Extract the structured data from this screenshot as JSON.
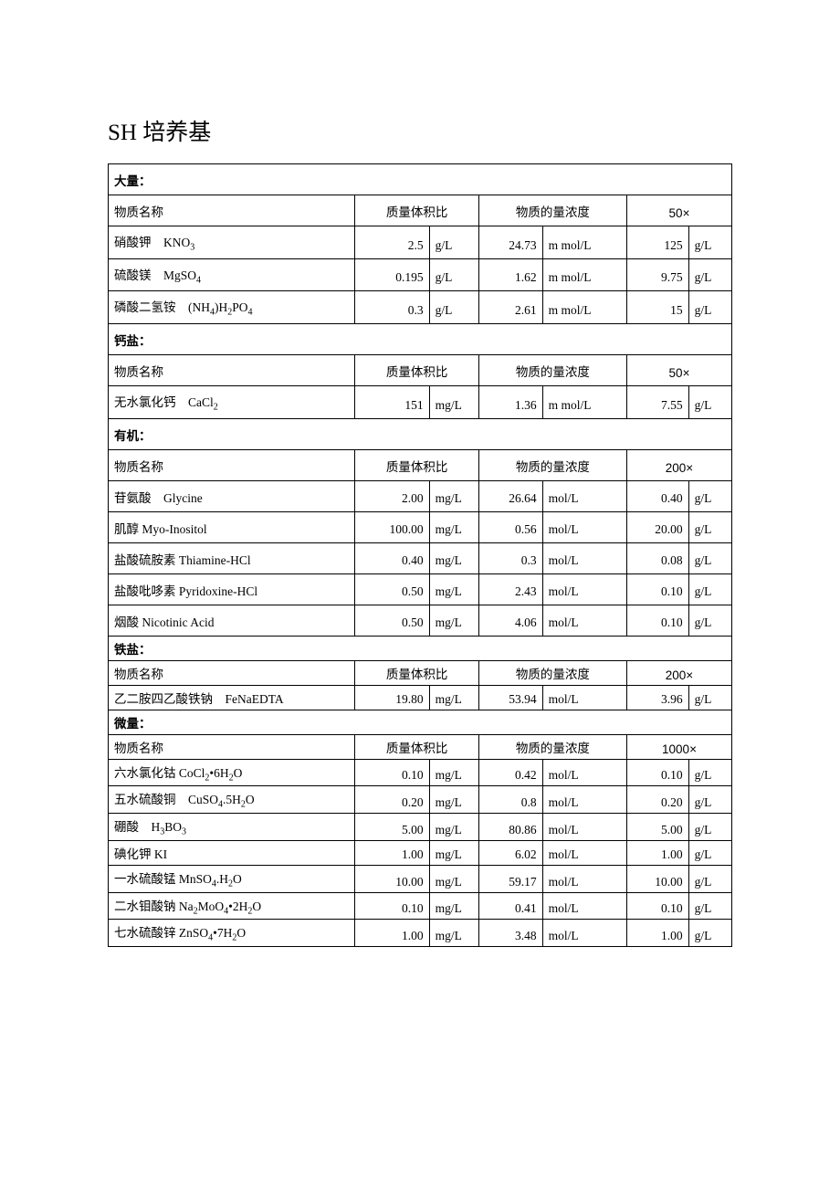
{
  "title": "SH 培养基",
  "headers": {
    "name": "物质名称",
    "mass_vol": "质量体积比",
    "molar": "物质的量浓度"
  },
  "sections": [
    {
      "label": "大量：",
      "multiplier": "50×",
      "compact": false,
      "rows": [
        {
          "name": "硝酸钾　KNO₃",
          "v1": "2.5",
          "u1": "g/L",
          "v2": "24.73",
          "u2": "m mol/L",
          "v3": "125",
          "u3": "g/L"
        },
        {
          "name": "硫酸镁　MgSO₄",
          "v1": "0.195",
          "u1": "g/L",
          "v2": "1.62",
          "u2": "m mol/L",
          "v3": "9.75",
          "u3": "g/L"
        },
        {
          "name": "磷酸二氢铵　(NH₄)H₂PO₄",
          "v1": "0.3",
          "u1": "g/L",
          "v2": "2.61",
          "u2": "m mol/L",
          "v3": "15",
          "u3": "g/L"
        }
      ]
    },
    {
      "label": "钙盐：",
      "multiplier": "50×",
      "compact": false,
      "rows": [
        {
          "name": "无水氯化钙　CaCl₂",
          "v1": "151",
          "u1": "mg/L",
          "v2": "1.36",
          "u2": "m mol/L",
          "v3": "7.55",
          "u3": "g/L"
        }
      ]
    },
    {
      "label": "有机：",
      "multiplier": "200×",
      "compact": false,
      "rows": [
        {
          "name": "苷氨酸　Glycine",
          "v1": "2.00",
          "u1": "mg/L",
          "v2": "26.64",
          "u2": "mol/L",
          "v3": "0.40",
          "u3": "g/L"
        },
        {
          "name": "肌醇 Myo-Inositol",
          "v1": "100.00",
          "u1": "mg/L",
          "v2": "0.56",
          "u2": "mol/L",
          "v3": "20.00",
          "u3": "g/L"
        },
        {
          "name": "盐酸硫胺素 Thiamine-HCl",
          "v1": "0.40",
          "u1": "mg/L",
          "v2": "0.3",
          "u2": "mol/L",
          "v3": "0.08",
          "u3": "g/L"
        },
        {
          "name": "盐酸吡哆素 Pyridoxine-HCl",
          "v1": "0.50",
          "u1": "mg/L",
          "v2": "2.43",
          "u2": "mol/L",
          "v3": "0.10",
          "u3": "g/L"
        },
        {
          "name": "烟酸 Nicotinic Acid",
          "v1": "0.50",
          "u1": "mg/L",
          "v2": "4.06",
          "u2": "mol/L",
          "v3": "0.10",
          "u3": "g/L"
        }
      ]
    },
    {
      "label": "铁盐：",
      "multiplier": "200×",
      "compact": true,
      "rows": [
        {
          "name": "乙二胺四乙酸铁钠　FeNaEDTA",
          "v1": "19.80",
          "u1": "mg/L",
          "v2": "53.94",
          "u2": "mol/L",
          "v3": "3.96",
          "u3": "g/L"
        }
      ]
    },
    {
      "label": "微量：",
      "multiplier": "1000×",
      "compact": true,
      "rows": [
        {
          "name": "六水氯化钴 CoCl₂•6H₂O",
          "v1": "0.10",
          "u1": "mg/L",
          "v2": "0.42",
          "u2": "mol/L",
          "v3": "0.10",
          "u3": "g/L"
        },
        {
          "name": "五水硫酸铜　CuSO₄.5H₂O",
          "v1": "0.20",
          "u1": "mg/L",
          "v2": "0.8",
          "u2": "mol/L",
          "v3": "0.20",
          "u3": "g/L"
        },
        {
          "name": "硼酸　H₃BO₃",
          "v1": "5.00",
          "u1": "mg/L",
          "v2": "80.86",
          "u2": "mol/L",
          "v3": "5.00",
          "u3": "g/L"
        },
        {
          "name": "碘化钾 KI",
          "v1": "1.00",
          "u1": "mg/L",
          "v2": "6.02",
          "u2": "mol/L",
          "v3": "1.00",
          "u3": "g/L"
        },
        {
          "name": "一水硫酸锰 MnSO₄.H₂O",
          "v1": "10.00",
          "u1": "mg/L",
          "v2": "59.17",
          "u2": "mol/L",
          "v3": "10.00",
          "u3": "g/L"
        },
        {
          "name": "二水钼酸钠 Na₂MoO₄•2H₂O",
          "v1": "0.10",
          "u1": "mg/L",
          "v2": "0.41",
          "u2": "mol/L",
          "v3": "0.10",
          "u3": "g/L"
        },
        {
          "name": "七水硫酸锌 ZnSO4•7H2O",
          "v1": "1.00",
          "u1": "mg/L",
          "v2": "3.48",
          "u2": "mol/L",
          "v3": "1.00",
          "u3": "g/L"
        }
      ]
    }
  ]
}
